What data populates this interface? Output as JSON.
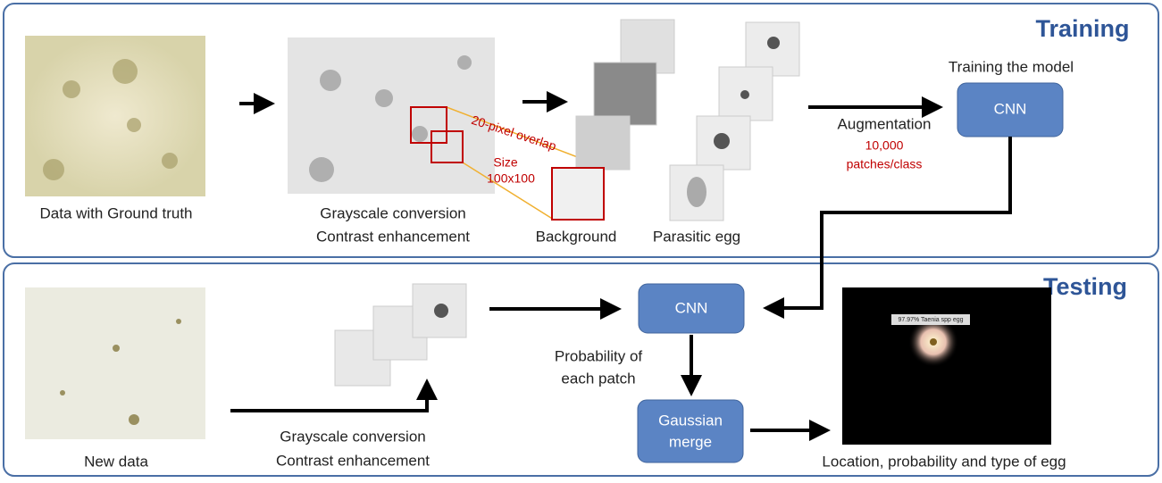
{
  "training": {
    "title": "Training",
    "input_label": "Data with Ground truth",
    "preprocess": [
      "Grayscale conversion",
      "Contrast enhancement"
    ],
    "overlap": "20-pixel overlap",
    "size": [
      "Size",
      "100x100"
    ],
    "background": "Background",
    "egg": "Parasitic egg",
    "augmentation": "Augmentation",
    "patches": [
      "10,000",
      "patches/class"
    ],
    "model_label": "Training the model",
    "cnn": "CNN"
  },
  "testing": {
    "title": "Testing",
    "input_label": "New data",
    "preprocess": [
      "Grayscale conversion",
      "Contrast enhancement"
    ],
    "cnn": "CNN",
    "probability": [
      "Probability of",
      "each patch"
    ],
    "merge": [
      "Gaussian",
      "merge"
    ],
    "detection": "97.97% Taenia spp egg",
    "output_label": "Location, probability and type of egg"
  }
}
